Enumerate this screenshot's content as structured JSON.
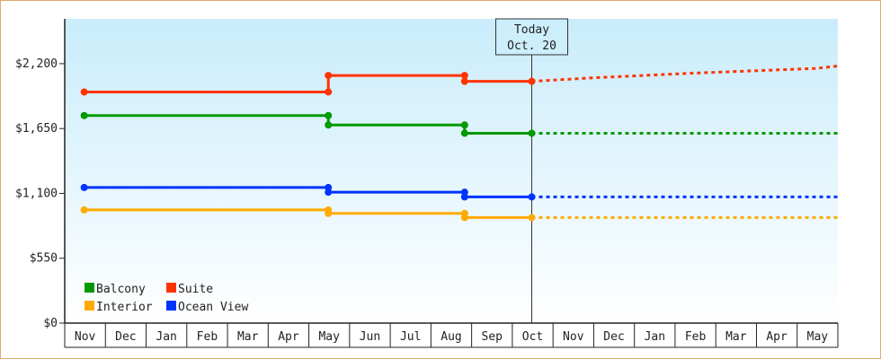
{
  "chart_data": {
    "type": "line",
    "x_ticks": [
      "Nov",
      "Dec",
      "Jan",
      "Feb",
      "Mar",
      "Apr",
      "May",
      "Jun",
      "Jul",
      "Aug",
      "Sep",
      "Oct",
      "Nov",
      "Dec",
      "Jan",
      "Feb",
      "Mar",
      "Apr",
      "May"
    ],
    "y_ticks": [
      "$0",
      "$550",
      "$1,100",
      "$1,650",
      "$2,200"
    ],
    "ylim": [
      0,
      2580
    ],
    "today_label": "Today",
    "today_date": "Oct. 20",
    "today_x": 11.0,
    "series": [
      {
        "name": "Suite",
        "color": "#ff3300",
        "actual": [
          [
            0,
            1960
          ],
          [
            6.0,
            1960
          ],
          [
            6.0,
            2100
          ],
          [
            9.35,
            2100
          ],
          [
            9.35,
            2050
          ],
          [
            11.0,
            2050
          ]
        ],
        "markers": [
          [
            0,
            1960
          ],
          [
            6.0,
            1960
          ],
          [
            6.0,
            2100
          ],
          [
            9.35,
            2100
          ],
          [
            9.35,
            2050
          ],
          [
            11.0,
            2050
          ]
        ],
        "forecast": [
          [
            11.0,
            2050
          ],
          [
            12.5,
            2080
          ],
          [
            15.0,
            2120
          ],
          [
            18.0,
            2160
          ],
          [
            19.0,
            2180
          ]
        ]
      },
      {
        "name": "Balcony",
        "color": "#009900",
        "actual": [
          [
            0,
            1760
          ],
          [
            6.0,
            1760
          ],
          [
            6.0,
            1680
          ],
          [
            9.35,
            1680
          ],
          [
            9.35,
            1610
          ],
          [
            11.0,
            1610
          ]
        ],
        "markers": [
          [
            0,
            1760
          ],
          [
            6.0,
            1760
          ],
          [
            6.0,
            1680
          ],
          [
            9.35,
            1680
          ],
          [
            9.35,
            1610
          ],
          [
            11.0,
            1610
          ]
        ],
        "forecast": [
          [
            11.0,
            1610
          ],
          [
            19.0,
            1610
          ]
        ]
      },
      {
        "name": "Ocean View",
        "color": "#0033ff",
        "actual": [
          [
            0,
            1150
          ],
          [
            6.0,
            1150
          ],
          [
            6.0,
            1110
          ],
          [
            9.35,
            1110
          ],
          [
            9.35,
            1070
          ],
          [
            11.0,
            1070
          ]
        ],
        "markers": [
          [
            0,
            1150
          ],
          [
            6.0,
            1150
          ],
          [
            6.0,
            1110
          ],
          [
            9.35,
            1110
          ],
          [
            9.35,
            1070
          ],
          [
            11.0,
            1070
          ]
        ],
        "forecast": [
          [
            11.0,
            1070
          ],
          [
            19.0,
            1070
          ]
        ]
      },
      {
        "name": "Interior",
        "color": "#ffaa00",
        "actual": [
          [
            0,
            960
          ],
          [
            6.0,
            960
          ],
          [
            6.0,
            930
          ],
          [
            9.35,
            930
          ],
          [
            9.35,
            895
          ],
          [
            11.0,
            895
          ]
        ],
        "markers": [
          [
            0,
            960
          ],
          [
            6.0,
            960
          ],
          [
            6.0,
            930
          ],
          [
            9.35,
            930
          ],
          [
            9.35,
            895
          ],
          [
            11.0,
            895
          ]
        ],
        "forecast": [
          [
            11.0,
            895
          ],
          [
            19.0,
            895
          ]
        ]
      }
    ],
    "legend": [
      {
        "name": "Balcony",
        "color": "#009900"
      },
      {
        "name": "Suite",
        "color": "#ff3300"
      },
      {
        "name": "Interior",
        "color": "#ffaa00"
      },
      {
        "name": "Ocean View",
        "color": "#0033ff"
      }
    ],
    "legend_placement": "bottom-left"
  }
}
